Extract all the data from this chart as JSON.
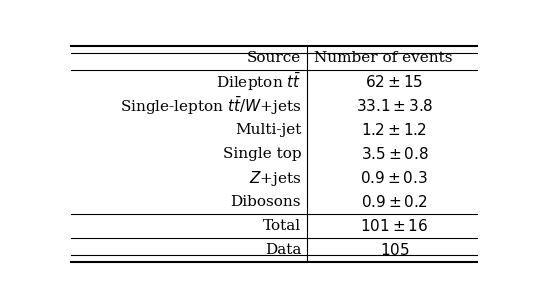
{
  "col_headers": [
    "Source",
    "Number of events"
  ],
  "rows": [
    [
      "Dilepton $t\\bar{t}$",
      "$62 \\pm 15$"
    ],
    [
      "Single-lepton $t\\bar{t}/W$+jets",
      "$33.1 \\pm 3.8$"
    ],
    [
      "Multi-jet",
      "$1.2 \\pm 1.2$"
    ],
    [
      "Single top",
      "$3.5 \\pm 0.8$"
    ],
    [
      "$Z$+jets",
      "$0.9 \\pm 0.3$"
    ],
    [
      "Dibosons",
      "$0.9 \\pm 0.2$"
    ]
  ],
  "total_row": [
    "Total",
    "$101 \\pm 16$"
  ],
  "data_row": [
    "Data",
    "$105$"
  ],
  "bg_color": "#ffffff",
  "text_color": "#000000",
  "body_fontsize": 11,
  "col_split": 0.58
}
